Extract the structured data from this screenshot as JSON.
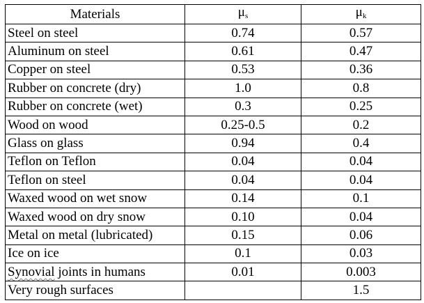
{
  "table": {
    "headers": {
      "material": "Materials",
      "mu_s": {
        "symbol": "μ",
        "sub": "s"
      },
      "mu_k": {
        "symbol": "μ",
        "sub": "k"
      }
    },
    "rows": [
      {
        "material": "Steel on steel",
        "mu_s": "0.74",
        "mu_k": "0.57"
      },
      {
        "material": "Aluminum on steel",
        "mu_s": "0.61",
        "mu_k": "0.47"
      },
      {
        "material": "Copper on steel",
        "mu_s": "0.53",
        "mu_k": "0.36"
      },
      {
        "material": "Rubber on concrete (dry)",
        "mu_s": "1.0",
        "mu_k": "0.8"
      },
      {
        "material": "Rubber on concrete (wet)",
        "mu_s": "0.3",
        "mu_k": "0.25"
      },
      {
        "material": "Wood on wood",
        "mu_s": "0.25-0.5",
        "mu_k": "0.2"
      },
      {
        "material": "Glass on glass",
        "mu_s": "0.94",
        "mu_k": "0.4"
      },
      {
        "material": "Teflon on Teflon",
        "mu_s": "0.04",
        "mu_k": "0.04"
      },
      {
        "material": "Teflon on steel",
        "mu_s": "0.04",
        "mu_k": "0.04"
      },
      {
        "material": "Waxed wood on wet snow",
        "mu_s": "0.14",
        "mu_k": "0.1"
      },
      {
        "material": "Waxed wood on dry snow",
        "mu_s": "0.10",
        "mu_k": "0.04"
      },
      {
        "material": "Metal on metal (lubricated)",
        "mu_s": "0.15",
        "mu_k": "0.06"
      },
      {
        "material": "Ice on ice",
        "mu_s": "0.1",
        "mu_k": "0.03"
      },
      {
        "material": "Synovial joints in humans",
        "mu_s": "0.01",
        "mu_k": "0.003",
        "spellcheck_word": "Synovial",
        "material_rest": " joints in humans"
      },
      {
        "material": "Very rough surfaces",
        "mu_s": "",
        "mu_k": "1.5"
      }
    ]
  }
}
